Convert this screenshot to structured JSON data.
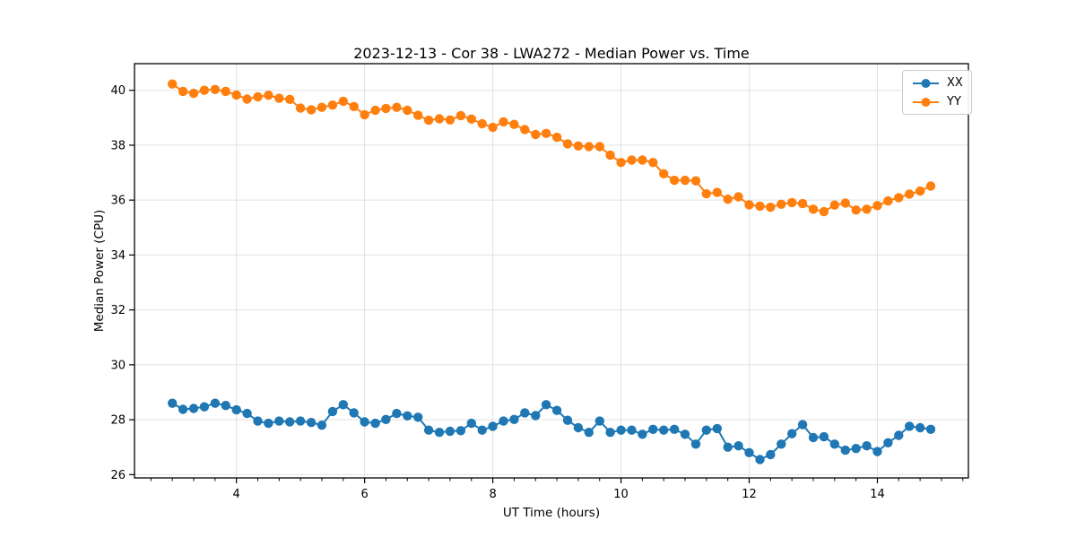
{
  "chart_data": {
    "type": "line",
    "title": "2023-12-13 - Cor 38 - LWA272 - Median Power vs. Time",
    "xlabel": "UT Time (hours)",
    "ylabel": "Median Power (CPU)",
    "xlim": [
      2.41,
      15.42
    ],
    "ylim": [
      25.88,
      40.97
    ],
    "x_ticks": [
      4,
      6,
      8,
      10,
      12,
      14
    ],
    "y_ticks": [
      26,
      28,
      30,
      32,
      34,
      36,
      38,
      40
    ],
    "x_minor_step": 0.33333,
    "grid": true,
    "grid_color": "#e2e2e2",
    "legend_position": "upper right",
    "marker": "circle",
    "x": [
      3.0,
      3.167,
      3.333,
      3.5,
      3.667,
      3.833,
      4.0,
      4.167,
      4.333,
      4.5,
      4.667,
      4.833,
      5.0,
      5.167,
      5.333,
      5.5,
      5.667,
      5.833,
      6.0,
      6.167,
      6.333,
      6.5,
      6.667,
      6.833,
      7.0,
      7.167,
      7.333,
      7.5,
      7.667,
      7.833,
      8.0,
      8.167,
      8.333,
      8.5,
      8.667,
      8.833,
      9.0,
      9.167,
      9.333,
      9.5,
      9.667,
      9.833,
      10.0,
      10.167,
      10.333,
      10.5,
      10.667,
      10.833,
      11.0,
      11.167,
      11.333,
      11.5,
      11.667,
      11.833,
      12.0,
      12.167,
      12.333,
      12.5,
      12.667,
      12.833,
      13.0,
      13.167,
      13.333,
      13.5,
      13.667,
      13.833,
      14.0,
      14.167,
      14.333,
      14.5,
      14.667,
      14.833
    ],
    "series": [
      {
        "name": "XX",
        "color": "#1f77b4",
        "values": [
          28.6,
          28.38,
          28.41,
          28.47,
          28.6,
          28.52,
          28.36,
          28.23,
          27.95,
          27.87,
          27.95,
          27.92,
          27.95,
          27.9,
          27.8,
          28.3,
          28.55,
          28.25,
          27.92,
          27.87,
          28.01,
          28.23,
          28.14,
          28.09,
          27.62,
          27.54,
          27.58,
          27.6,
          27.87,
          27.62,
          27.76,
          27.95,
          28.01,
          28.25,
          28.15,
          28.55,
          28.34,
          27.98,
          27.71,
          27.54,
          27.95,
          27.54,
          27.62,
          27.62,
          27.47,
          27.65,
          27.62,
          27.65,
          27.47,
          27.11,
          27.62,
          27.68,
          27.0,
          27.05,
          26.8,
          26.55,
          26.73,
          27.11,
          27.49,
          27.82,
          27.35,
          27.38,
          27.11,
          26.89,
          26.95,
          27.05,
          26.84,
          27.16,
          27.43,
          27.76,
          27.71,
          27.65
        ]
      },
      {
        "name": "YY",
        "color": "#ff7f0e",
        "values": [
          40.23,
          39.96,
          39.89,
          40.0,
          40.03,
          39.96,
          39.83,
          39.68,
          39.76,
          39.82,
          39.71,
          39.67,
          39.35,
          39.29,
          39.38,
          39.46,
          39.6,
          39.41,
          39.11,
          39.27,
          39.34,
          39.38,
          39.27,
          39.09,
          38.91,
          38.96,
          38.92,
          39.08,
          38.95,
          38.78,
          38.65,
          38.85,
          38.76,
          38.57,
          38.39,
          38.43,
          38.29,
          38.05,
          37.97,
          37.95,
          37.95,
          37.64,
          37.37,
          37.46,
          37.46,
          37.37,
          36.96,
          36.72,
          36.72,
          36.7,
          36.23,
          36.28,
          36.03,
          36.12,
          35.83,
          35.78,
          35.74,
          35.85,
          35.91,
          35.87,
          35.67,
          35.58,
          35.82,
          35.89,
          35.64,
          35.67,
          35.8,
          35.97,
          36.09,
          36.22,
          36.33,
          36.51
        ]
      }
    ]
  }
}
